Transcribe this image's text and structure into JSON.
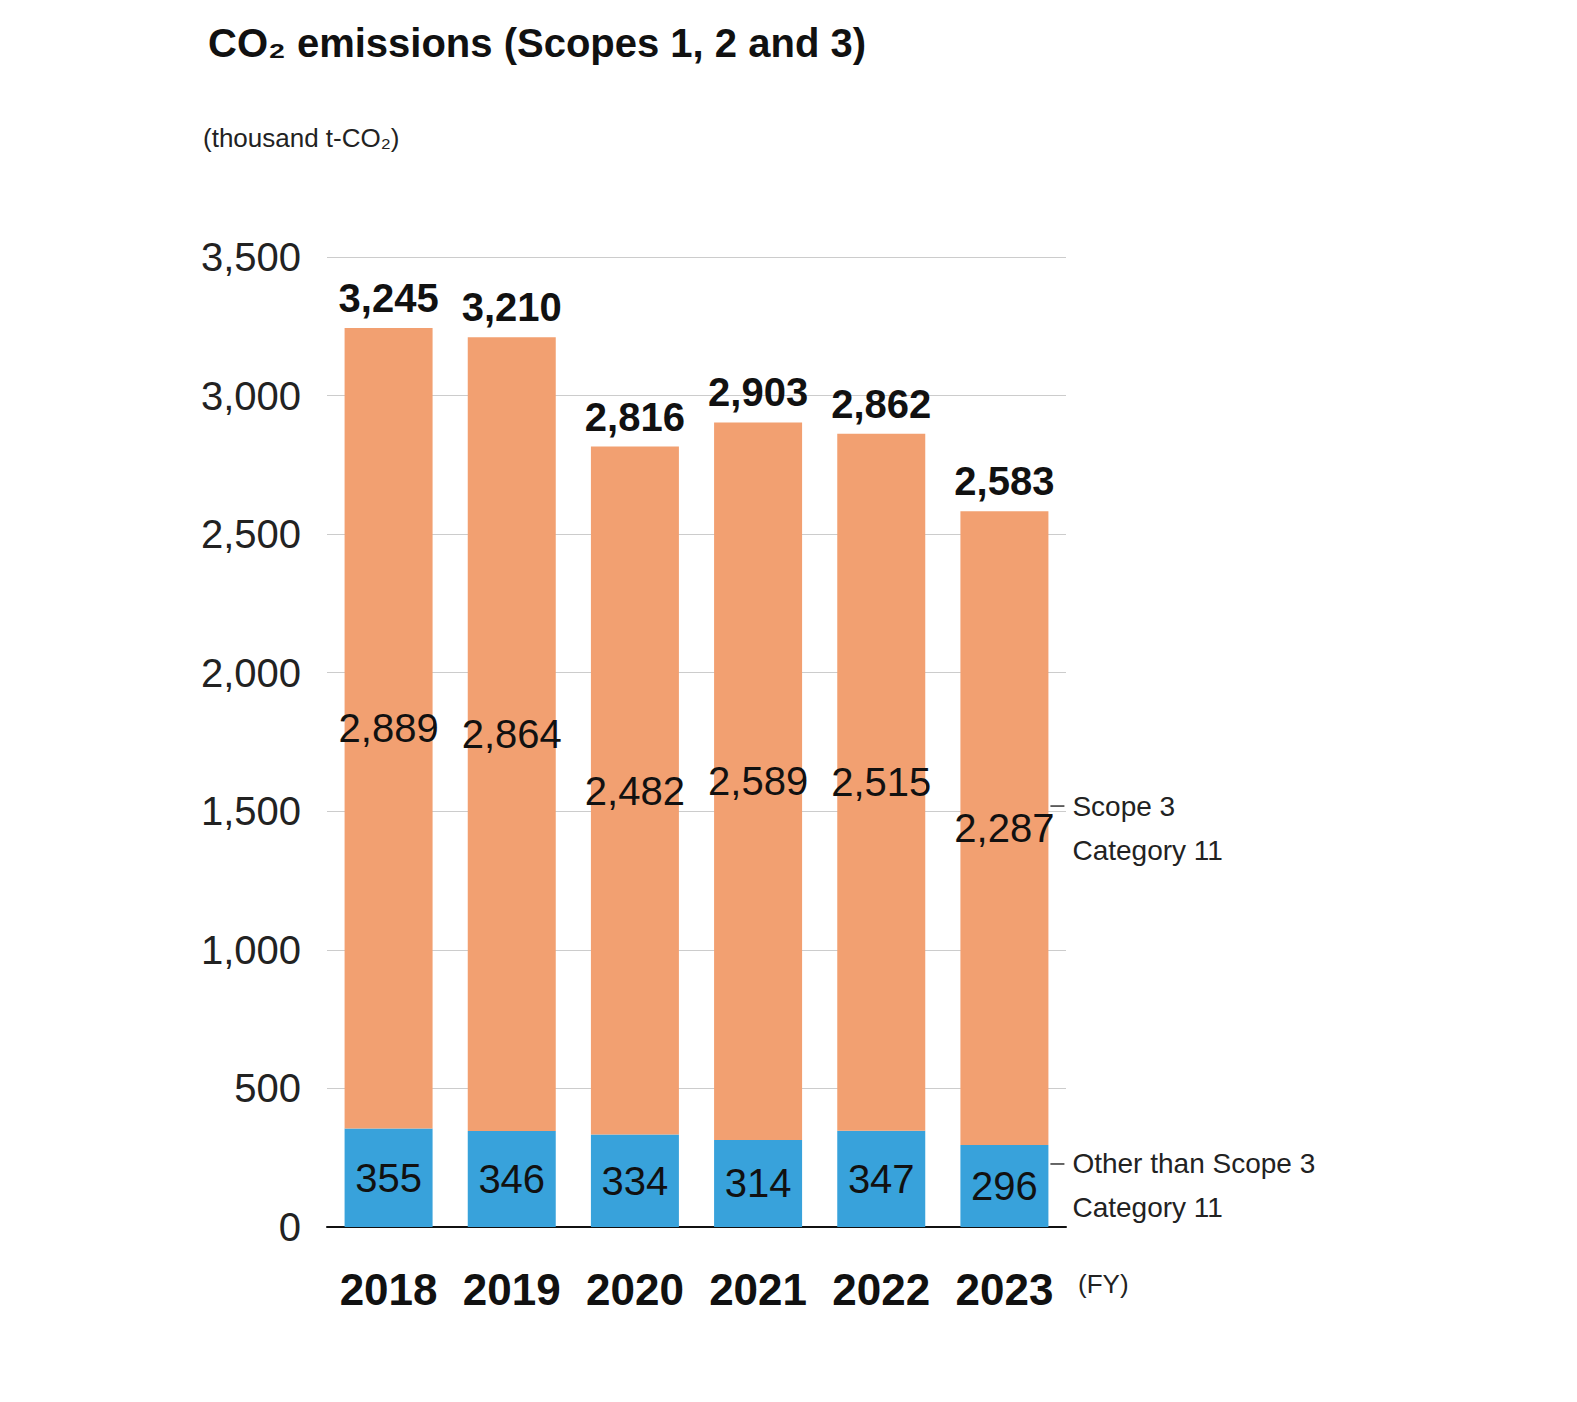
{
  "chart_data": {
    "type": "bar",
    "title": "CO₂ emissions (Scopes 1, 2 and 3)",
    "y_label": "(thousand t-CO₂)",
    "x_label": "(FY)",
    "categories": [
      "2018",
      "2019",
      "2020",
      "2021",
      "2022",
      "2023"
    ],
    "series": [
      {
        "name": "Other than Scope 3 Category 11",
        "color": "#38a2db",
        "values": [
          355,
          346,
          334,
          314,
          347,
          296
        ]
      },
      {
        "name": "Scope 3 Category 11",
        "color": "#f2a071",
        "values": [
          2889,
          2864,
          2482,
          2589,
          2515,
          2287
        ],
        "value_labels": [
          "2,889",
          "2,864",
          "2,482",
          "2,589",
          "2,515",
          "2,287"
        ]
      }
    ],
    "totals": [
      3245,
      3210,
      2816,
      2903,
      2862,
      2583
    ],
    "total_labels": [
      "3,245",
      "3,210",
      "2,816",
      "2,903",
      "2,862",
      "2,583"
    ],
    "ylim": [
      0,
      3500
    ],
    "yticks": [
      0,
      500,
      {
        "value": 1000,
        "label": "1,000"
      },
      {
        "value": 1500,
        "label": "1,500"
      },
      {
        "value": 2000,
        "label": "2,000"
      },
      {
        "value": 2500,
        "label": "2,500"
      },
      {
        "value": 3000,
        "label": "3,000"
      },
      {
        "value": 3500,
        "label": "3,500"
      }
    ],
    "grid": true,
    "stacked": true,
    "data_labels": true,
    "legend": "right"
  }
}
